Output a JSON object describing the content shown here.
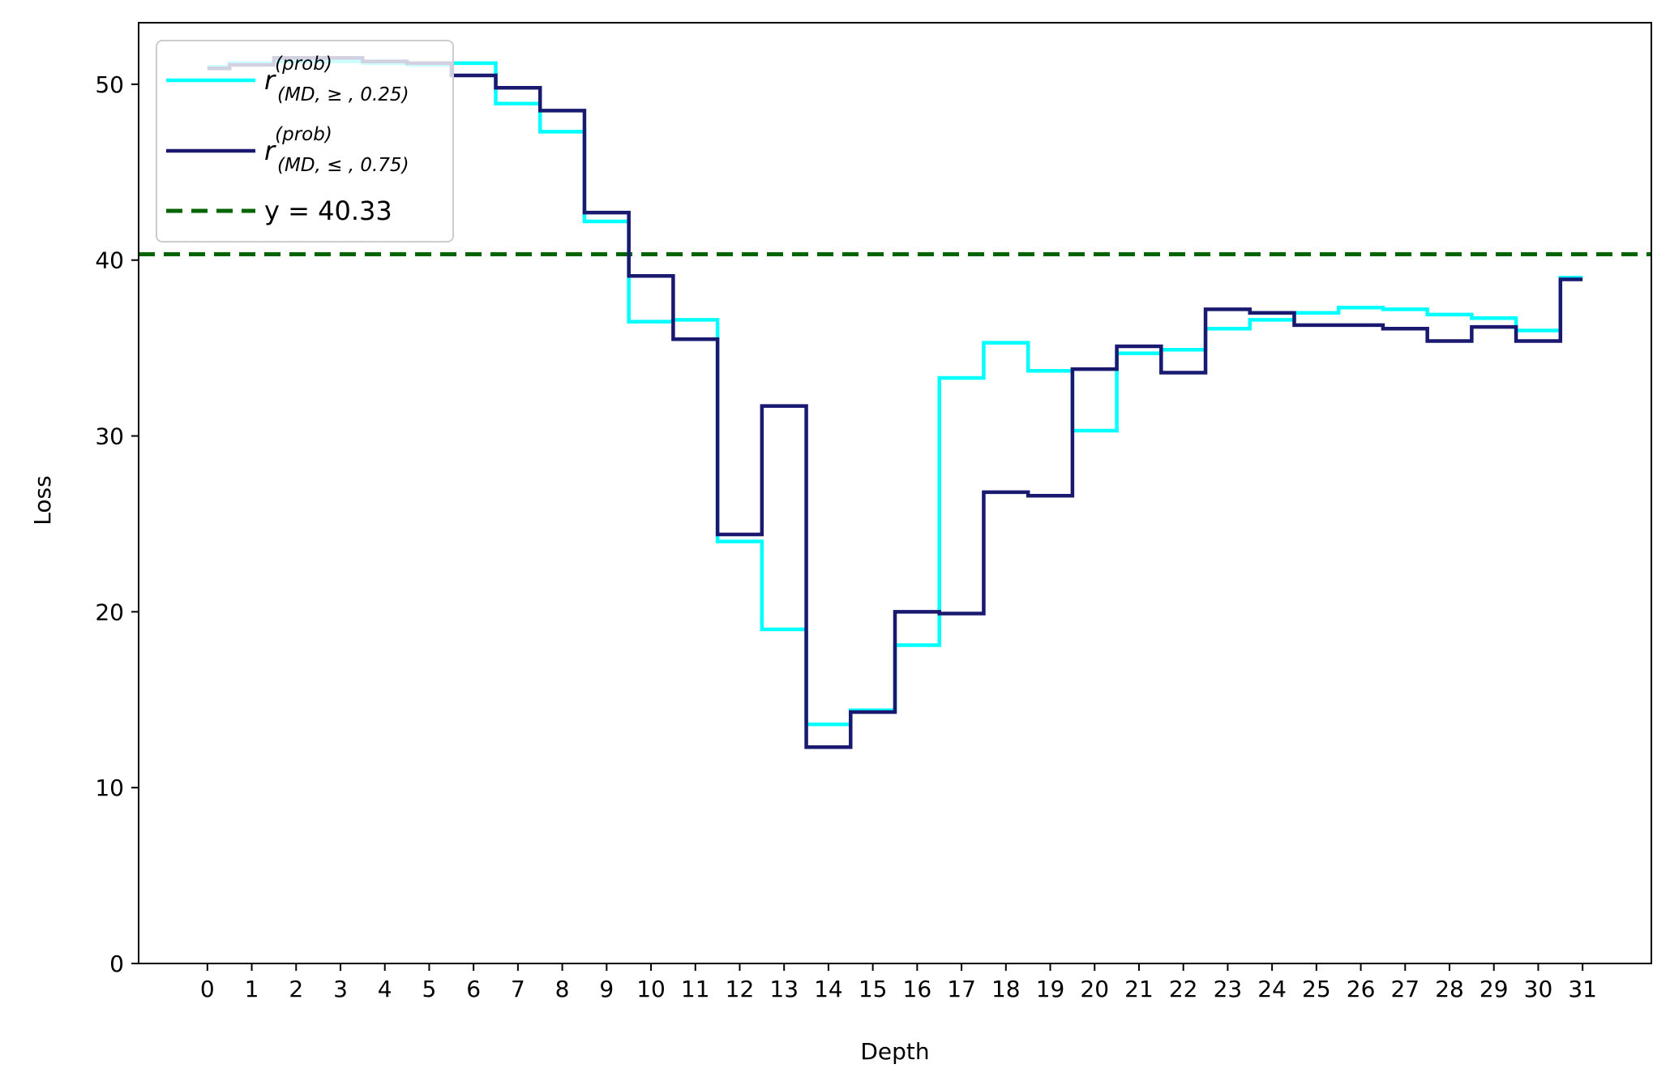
{
  "chart_data": {
    "type": "line",
    "step": "mid",
    "xlabel": "Depth",
    "ylabel": "Loss",
    "xlim": [
      -1.55,
      32.55
    ],
    "ylim": [
      0,
      53.5
    ],
    "x_ticks": [
      0,
      1,
      2,
      3,
      4,
      5,
      6,
      7,
      8,
      9,
      10,
      11,
      12,
      13,
      14,
      15,
      16,
      17,
      18,
      19,
      20,
      21,
      22,
      23,
      24,
      25,
      26,
      27,
      28,
      29,
      30,
      31
    ],
    "y_ticks": [
      0,
      10,
      20,
      30,
      40,
      50
    ],
    "x": [
      0,
      1,
      2,
      3,
      4,
      5,
      6,
      7,
      8,
      9,
      10,
      11,
      12,
      13,
      14,
      15,
      16,
      17,
      18,
      19,
      20,
      21,
      22,
      23,
      24,
      25,
      26,
      27,
      28,
      29,
      30,
      31
    ],
    "series": [
      {
        "name_base": "r",
        "name_sup": "(prob)",
        "name_sub": "(MD, ≥ , 0.25)",
        "color": "#00ffff",
        "values": [
          51.0,
          51.2,
          51.3,
          51.3,
          51.2,
          51.1,
          51.2,
          48.9,
          47.3,
          42.2,
          36.5,
          36.6,
          24.0,
          19.0,
          13.6,
          14.4,
          18.1,
          33.3,
          35.3,
          33.7,
          30.3,
          34.7,
          34.9,
          36.1,
          36.6,
          37.0,
          37.3,
          37.2,
          36.9,
          36.7,
          36.0,
          39.0
        ]
      },
      {
        "name_base": "r",
        "name_sup": "(prob)",
        "name_sub": "(MD, ≤ , 0.75)",
        "color": "#191970",
        "values": [
          50.9,
          51.1,
          51.5,
          51.5,
          51.3,
          51.2,
          50.5,
          49.8,
          48.5,
          42.7,
          39.1,
          35.5,
          24.4,
          31.7,
          12.3,
          14.3,
          20.0,
          19.9,
          26.8,
          26.6,
          33.8,
          35.1,
          33.6,
          37.2,
          37.0,
          36.3,
          36.3,
          36.1,
          35.4,
          36.2,
          35.4,
          38.9
        ]
      }
    ],
    "hline": {
      "y": 40.33,
      "label": "y = 40.33",
      "color": "#006400",
      "style": "dashed"
    },
    "legend_position": "upper-left",
    "grid": false
  }
}
